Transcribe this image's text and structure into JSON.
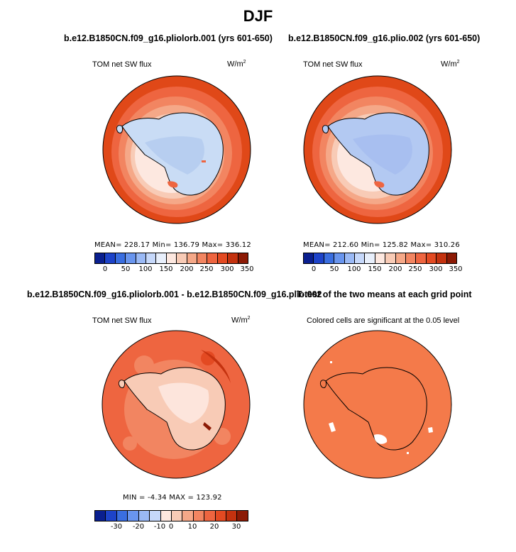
{
  "title": "DJF",
  "panels": {
    "top_left": {
      "title": "b.e12.B1850CN.f09_g16.pliolorb.001 (yrs 601-650)",
      "variable": "TOM net SW flux",
      "units": "W/m",
      "units_exp": "2",
      "stats": "MEAN= 228.17   Min= 136.79   Max= 336.12"
    },
    "top_right": {
      "title": "b.e12.B1850CN.f09_g16.plio.002 (yrs 601-650)",
      "variable": "TOM net SW flux",
      "units": "W/m",
      "units_exp": "2",
      "stats": "MEAN= 212.60   Min= 125.82   Max= 310.26"
    },
    "bottom_left": {
      "title": "b.e12.B1850CN.f09_g16.pliolorb.001 - b.e12.B1850CN.f09_g16.plio.002",
      "variable": "TOM net SW flux",
      "units": "W/m",
      "units_exp": "2",
      "stats": "MIN =  -4.34  MAX = 123.92"
    },
    "bottom_right": {
      "title": "T-test of the two means at each grid point",
      "note": "Colored cells are significant at the 0.05 level"
    }
  },
  "colorbar_abs": {
    "ticks": [
      "0",
      "50",
      "100",
      "150",
      "200",
      "250",
      "300",
      "350"
    ],
    "colors": [
      "#0a1f8f",
      "#1d43c9",
      "#3a6ee0",
      "#6995ee",
      "#9ab9f5",
      "#c6d8fa",
      "#e8effb",
      "#fde8e0",
      "#f8cbb6",
      "#f5a888",
      "#f28561",
      "#ee6540",
      "#e34a22",
      "#c4320f",
      "#8c1a05"
    ]
  },
  "colorbar_diff": {
    "ticks": [
      "-30",
      "-20",
      "-10",
      "0",
      "10",
      "20",
      "30"
    ],
    "colors": [
      "#0a1f8f",
      "#1d43c9",
      "#3a6ee0",
      "#6995ee",
      "#9ab9f5",
      "#c6d8fa",
      "#fde8e0",
      "#f8cbb6",
      "#f5a888",
      "#f28561",
      "#ee6540",
      "#e34a22",
      "#c4320f",
      "#8c1a05"
    ]
  }
}
